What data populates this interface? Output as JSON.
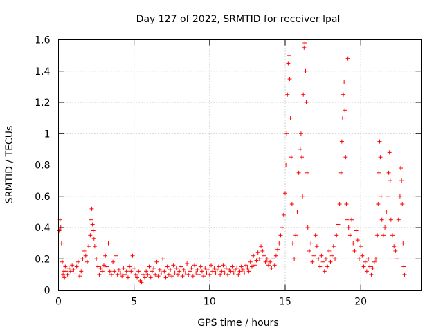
{
  "chart_data": {
    "type": "scatter",
    "title": "Day 127 of 2022, SRMTID for receiver lpal",
    "xlabel": "GPS time / hours",
    "ylabel": "SRMTID / TECUs",
    "xlim": [
      0,
      24
    ],
    "ylim": [
      0,
      1.6
    ],
    "xticks": [
      0,
      5,
      10,
      15,
      20
    ],
    "yticks": [
      0,
      0.2,
      0.4,
      0.6,
      0.8,
      1,
      1.2,
      1.4,
      1.6
    ],
    "xtick_labels": [
      "0",
      "5",
      "10",
      "15",
      "20"
    ],
    "ytick_labels": [
      "0",
      "0.2",
      "0.4",
      "0.6",
      "0.8",
      "1",
      "1.2",
      "1.4",
      "1.6"
    ],
    "grid": true,
    "marker": "+",
    "color": "#ff0000",
    "series": [
      {
        "name": "SRMTID",
        "points": [
          [
            0.05,
            0.38
          ],
          [
            0.1,
            0.45
          ],
          [
            0.15,
            0.4
          ],
          [
            0.2,
            0.3
          ],
          [
            0.25,
            0.18
          ],
          [
            0.3,
            0.1
          ],
          [
            0.35,
            0.12
          ],
          [
            0.4,
            0.08
          ],
          [
            0.45,
            0.15
          ],
          [
            0.5,
            0.12
          ],
          [
            0.6,
            0.1
          ],
          [
            0.7,
            0.14
          ],
          [
            0.8,
            0.12
          ],
          [
            0.9,
            0.16
          ],
          [
            1.0,
            0.13
          ],
          [
            1.1,
            0.11
          ],
          [
            1.2,
            0.15
          ],
          [
            1.3,
            0.18
          ],
          [
            1.4,
            0.09
          ],
          [
            1.5,
            0.12
          ],
          [
            1.6,
            0.2
          ],
          [
            1.7,
            0.25
          ],
          [
            1.8,
            0.22
          ],
          [
            1.9,
            0.18
          ],
          [
            2.0,
            0.28
          ],
          [
            2.1,
            0.35
          ],
          [
            2.15,
            0.45
          ],
          [
            2.2,
            0.52
          ],
          [
            2.25,
            0.42
          ],
          [
            2.3,
            0.38
          ],
          [
            2.35,
            0.33
          ],
          [
            2.4,
            0.28
          ],
          [
            2.5,
            0.2
          ],
          [
            2.6,
            0.15
          ],
          [
            2.7,
            0.1
          ],
          [
            2.8,
            0.14
          ],
          [
            2.9,
            0.12
          ],
          [
            3.0,
            0.16
          ],
          [
            3.1,
            0.22
          ],
          [
            3.2,
            0.15
          ],
          [
            3.3,
            0.3
          ],
          [
            3.4,
            0.12
          ],
          [
            3.5,
            0.1
          ],
          [
            3.6,
            0.18
          ],
          [
            3.7,
            0.12
          ],
          [
            3.8,
            0.22
          ],
          [
            3.9,
            0.1
          ],
          [
            4.0,
            0.13
          ],
          [
            4.1,
            0.11
          ],
          [
            4.2,
            0.09
          ],
          [
            4.3,
            0.14
          ],
          [
            4.4,
            0.1
          ],
          [
            4.5,
            0.12
          ],
          [
            4.6,
            0.08
          ],
          [
            4.7,
            0.15
          ],
          [
            4.8,
            0.12
          ],
          [
            4.9,
            0.22
          ],
          [
            5.0,
            0.14
          ],
          [
            5.1,
            0.1
          ],
          [
            5.2,
            0.08
          ],
          [
            5.3,
            0.12
          ],
          [
            5.4,
            0.06
          ],
          [
            5.5,
            0.05
          ],
          [
            5.6,
            0.1
          ],
          [
            5.7,
            0.08
          ],
          [
            5.8,
            0.12
          ],
          [
            5.9,
            0.1
          ],
          [
            6.0,
            0.15
          ],
          [
            6.1,
            0.08
          ],
          [
            6.2,
            0.12
          ],
          [
            6.3,
            0.14
          ],
          [
            6.4,
            0.1
          ],
          [
            6.5,
            0.18
          ],
          [
            6.6,
            0.09
          ],
          [
            6.7,
            0.13
          ],
          [
            6.8,
            0.11
          ],
          [
            6.9,
            0.2
          ],
          [
            7.0,
            0.12
          ],
          [
            7.1,
            0.08
          ],
          [
            7.2,
            0.15
          ],
          [
            7.3,
            0.1
          ],
          [
            7.4,
            0.13
          ],
          [
            7.5,
            0.09
          ],
          [
            7.6,
            0.16
          ],
          [
            7.7,
            0.11
          ],
          [
            7.8,
            0.14
          ],
          [
            7.9,
            0.1
          ],
          [
            8.0,
            0.12
          ],
          [
            8.1,
            0.15
          ],
          [
            8.2,
            0.09
          ],
          [
            8.3,
            0.13
          ],
          [
            8.4,
            0.11
          ],
          [
            8.5,
            0.17
          ],
          [
            8.6,
            0.1
          ],
          [
            8.7,
            0.12
          ],
          [
            8.8,
            0.14
          ],
          [
            8.9,
            0.09
          ],
          [
            9.0,
            0.16
          ],
          [
            9.1,
            0.11
          ],
          [
            9.2,
            0.13
          ],
          [
            9.3,
            0.1
          ],
          [
            9.4,
            0.15
          ],
          [
            9.5,
            0.12
          ],
          [
            9.6,
            0.09
          ],
          [
            9.7,
            0.14
          ],
          [
            9.8,
            0.11
          ],
          [
            9.9,
            0.13
          ],
          [
            10.0,
            0.1
          ],
          [
            10.1,
            0.16
          ],
          [
            10.2,
            0.12
          ],
          [
            10.3,
            0.14
          ],
          [
            10.4,
            0.11
          ],
          [
            10.5,
            0.13
          ],
          [
            10.6,
            0.15
          ],
          [
            10.7,
            0.1
          ],
          [
            10.8,
            0.12
          ],
          [
            10.9,
            0.16
          ],
          [
            11.0,
            0.11
          ],
          [
            11.1,
            0.14
          ],
          [
            11.2,
            0.1
          ],
          [
            11.3,
            0.13
          ],
          [
            11.4,
            0.12
          ],
          [
            11.5,
            0.15
          ],
          [
            11.6,
            0.11
          ],
          [
            11.7,
            0.13
          ],
          [
            11.8,
            0.14
          ],
          [
            11.9,
            0.1
          ],
          [
            12.0,
            0.12
          ],
          [
            12.1,
            0.15
          ],
          [
            12.2,
            0.13
          ],
          [
            12.3,
            0.11
          ],
          [
            12.4,
            0.16
          ],
          [
            12.5,
            0.14
          ],
          [
            12.6,
            0.12
          ],
          [
            12.7,
            0.18
          ],
          [
            12.8,
            0.15
          ],
          [
            12.9,
            0.22
          ],
          [
            13.0,
            0.16
          ],
          [
            13.1,
            0.19
          ],
          [
            13.2,
            0.24
          ],
          [
            13.3,
            0.2
          ],
          [
            13.4,
            0.28
          ],
          [
            13.5,
            0.25
          ],
          [
            13.6,
            0.22
          ],
          [
            13.7,
            0.18
          ],
          [
            13.8,
            0.2
          ],
          [
            13.9,
            0.16
          ],
          [
            14.0,
            0.18
          ],
          [
            14.1,
            0.14
          ],
          [
            14.2,
            0.2
          ],
          [
            14.3,
            0.16
          ],
          [
            14.4,
            0.22
          ],
          [
            14.5,
            0.26
          ],
          [
            14.6,
            0.3
          ],
          [
            14.7,
            0.35
          ],
          [
            14.8,
            0.4
          ],
          [
            14.9,
            0.48
          ],
          [
            15.0,
            0.62
          ],
          [
            15.05,
            0.8
          ],
          [
            15.1,
            1.0
          ],
          [
            15.15,
            1.25
          ],
          [
            15.2,
            1.45
          ],
          [
            15.25,
            1.5
          ],
          [
            15.3,
            1.35
          ],
          [
            15.35,
            1.1
          ],
          [
            15.4,
            0.85
          ],
          [
            15.45,
            0.55
          ],
          [
            15.5,
            0.3
          ],
          [
            15.6,
            0.2
          ],
          [
            15.7,
            0.35
          ],
          [
            15.8,
            0.5
          ],
          [
            15.9,
            0.75
          ],
          [
            16.0,
            0.9
          ],
          [
            16.05,
            1.0
          ],
          [
            16.1,
            0.85
          ],
          [
            16.15,
            0.6
          ],
          [
            16.2,
            1.25
          ],
          [
            16.25,
            1.55
          ],
          [
            16.3,
            1.58
          ],
          [
            16.35,
            1.4
          ],
          [
            16.4,
            1.2
          ],
          [
            16.45,
            0.75
          ],
          [
            16.5,
            0.4
          ],
          [
            16.6,
            0.25
          ],
          [
            16.7,
            0.3
          ],
          [
            16.8,
            0.18
          ],
          [
            16.9,
            0.22
          ],
          [
            17.0,
            0.35
          ],
          [
            17.1,
            0.28
          ],
          [
            17.2,
            0.2
          ],
          [
            17.3,
            0.15
          ],
          [
            17.4,
            0.22
          ],
          [
            17.5,
            0.18
          ],
          [
            17.6,
            0.12
          ],
          [
            17.7,
            0.2
          ],
          [
            17.8,
            0.15
          ],
          [
            17.9,
            0.25
          ],
          [
            18.0,
            0.18
          ],
          [
            18.1,
            0.22
          ],
          [
            18.2,
            0.28
          ],
          [
            18.3,
            0.2
          ],
          [
            18.4,
            0.35
          ],
          [
            18.5,
            0.42
          ],
          [
            18.6,
            0.55
          ],
          [
            18.7,
            0.75
          ],
          [
            18.75,
            0.95
          ],
          [
            18.8,
            1.1
          ],
          [
            18.85,
            1.25
          ],
          [
            18.9,
            1.33
          ],
          [
            18.95,
            1.15
          ],
          [
            19.0,
            0.85
          ],
          [
            19.05,
            0.55
          ],
          [
            19.1,
            0.45
          ],
          [
            19.15,
            1.48
          ],
          [
            19.2,
            0.4
          ],
          [
            19.3,
            0.35
          ],
          [
            19.4,
            0.45
          ],
          [
            19.5,
            0.3
          ],
          [
            19.6,
            0.25
          ],
          [
            19.7,
            0.38
          ],
          [
            19.8,
            0.32
          ],
          [
            19.9,
            0.2
          ],
          [
            20.0,
            0.28
          ],
          [
            20.1,
            0.22
          ],
          [
            20.2,
            0.15
          ],
          [
            20.3,
            0.18
          ],
          [
            20.4,
            0.12
          ],
          [
            20.5,
            0.2
          ],
          [
            20.6,
            0.15
          ],
          [
            20.7,
            0.1
          ],
          [
            20.8,
            0.14
          ],
          [
            20.9,
            0.18
          ],
          [
            21.0,
            0.2
          ],
          [
            21.1,
            0.35
          ],
          [
            21.15,
            0.55
          ],
          [
            21.2,
            0.75
          ],
          [
            21.25,
            0.95
          ],
          [
            21.3,
            0.85
          ],
          [
            21.35,
            0.6
          ],
          [
            21.4,
            0.45
          ],
          [
            21.5,
            0.35
          ],
          [
            21.6,
            0.4
          ],
          [
            21.7,
            0.5
          ],
          [
            21.8,
            0.6
          ],
          [
            21.85,
            0.75
          ],
          [
            21.9,
            0.88
          ],
          [
            21.95,
            0.7
          ],
          [
            22.0,
            0.45
          ],
          [
            22.1,
            0.35
          ],
          [
            22.2,
            0.28
          ],
          [
            22.3,
            0.25
          ],
          [
            22.4,
            0.2
          ],
          [
            22.5,
            0.45
          ],
          [
            22.6,
            0.6
          ],
          [
            22.65,
            0.78
          ],
          [
            22.7,
            0.7
          ],
          [
            22.75,
            0.55
          ],
          [
            22.8,
            0.3
          ],
          [
            22.85,
            0.15
          ],
          [
            22.9,
            0.1
          ]
        ]
      }
    ]
  }
}
